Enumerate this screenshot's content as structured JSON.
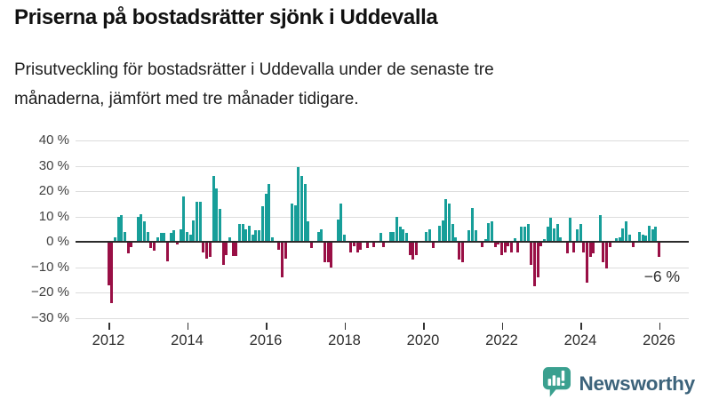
{
  "header": {
    "title": "Priserna på bostadsrätter sjönk i Uddevalla",
    "subtitle_line1": "Prisutveckling för bostadsrätter i Uddevalla under de senaste tre",
    "subtitle_line2": "månaderna, jämfört med tre månader tidigare."
  },
  "chart_data": {
    "type": "bar",
    "title": "Priserna på bostadsrätter sjönk i Uddevalla",
    "unit": "percent change vs three months earlier",
    "x_start": "2012-01",
    "x_end": "2026-01",
    "x_tick_labels": [
      "2012",
      "2014",
      "2016",
      "2018",
      "2020",
      "2022",
      "2024",
      "2026"
    ],
    "y_tick_labels": [
      "40 %",
      "30 %",
      "20 %",
      "10 %",
      "0 %",
      "−10 %",
      "−20 %",
      "−30 %"
    ],
    "ylim": [
      -30,
      40
    ],
    "grid": "horizontal",
    "legend": "none",
    "monthly_values_pct": [
      -17,
      -24,
      2,
      10,
      10.5,
      4,
      -4.5,
      -2,
      0,
      10,
      11,
      8,
      4,
      -2.5,
      -3.5,
      2,
      3.5,
      3.5,
      -7.5,
      3.5,
      4.5,
      -1,
      5,
      18,
      4,
      3,
      8.5,
      16,
      16,
      -4,
      -6.5,
      -6,
      26,
      21,
      13,
      -9,
      -5,
      2,
      -5.5,
      -5.5,
      7,
      7,
      5,
      6.5,
      3,
      4.5,
      4.5,
      14,
      19,
      23,
      2,
      0,
      -3,
      -14,
      -6.5,
      0,
      15,
      14.5,
      29.5,
      26,
      23,
      8,
      -2.5,
      0,
      4,
      5,
      -8,
      -8,
      -10,
      0,
      9,
      15,
      3,
      0,
      -4,
      -1.5,
      -4,
      -3,
      0,
      -2.5,
      0,
      -2,
      0,
      3.5,
      -2,
      0,
      4,
      4,
      10,
      6,
      5,
      3.5,
      -5,
      -7,
      -5,
      0,
      0,
      4,
      5,
      -2.5,
      0,
      6.5,
      8.5,
      17,
      15,
      7,
      2,
      -7,
      -8,
      0,
      4.5,
      13.5,
      4.5,
      0,
      -2,
      1,
      7.5,
      8,
      -2,
      -1,
      -5,
      -4,
      -1.5,
      -4,
      1.5,
      -4,
      6,
      6,
      7,
      -9,
      -17.5,
      -14,
      -1.5,
      1,
      6,
      9.5,
      5.5,
      7,
      2,
      0,
      -4.5,
      9.5,
      -4,
      5,
      7,
      -4,
      -16,
      -6,
      -4.5,
      0,
      10.5,
      -8,
      -10.5,
      -2,
      0,
      1.5,
      2,
      5.5,
      8,
      3,
      -2,
      0,
      4,
      3,
      2.5,
      6.5,
      5,
      6,
      -6
    ],
    "annotation": {
      "text": "−6 %",
      "value": -6
    },
    "colors": {
      "positive": "#179E99",
      "negative": "#990F45",
      "zero_line": "#2b2b2b"
    }
  },
  "footer": {
    "brand": "Newsworthy",
    "brand_color": "#3C637B",
    "logo_color": "#3AA08F"
  }
}
